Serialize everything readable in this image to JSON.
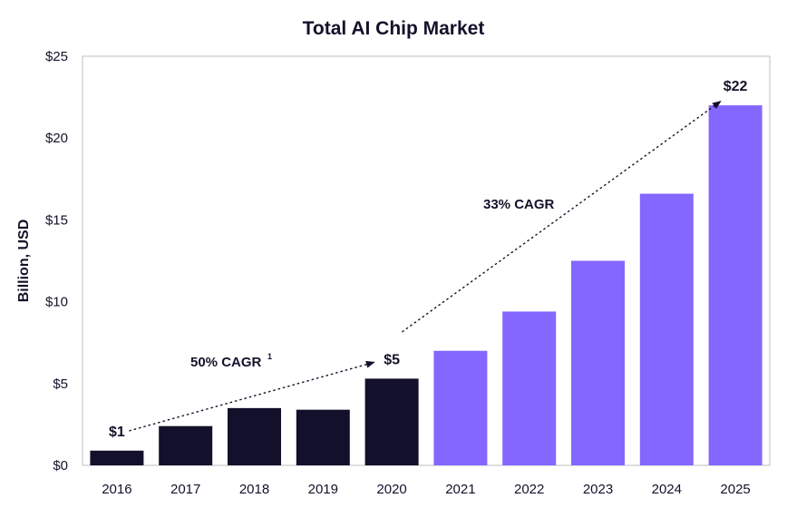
{
  "chart_data": {
    "type": "bar",
    "title": "Total AI Chip Market",
    "xlabel": "",
    "ylabel": "Billion, USD",
    "ylim": [
      0,
      25
    ],
    "yticks": [
      0,
      5,
      10,
      15,
      20,
      25
    ],
    "ytick_labels": [
      "$0",
      "$5",
      "$10",
      "$15",
      "$20",
      "$25"
    ],
    "grid": false,
    "categories": [
      "2016",
      "2017",
      "2018",
      "2019",
      "2020",
      "2021",
      "2022",
      "2023",
      "2024",
      "2025"
    ],
    "values": [
      0.9,
      2.4,
      3.5,
      3.4,
      5.3,
      7.0,
      9.4,
      12.5,
      16.6,
      22.0
    ],
    "colors": {
      "historical": "#12102a",
      "forecast": "#8467ff",
      "text": "#14122a",
      "frame": "#bfbfbf"
    },
    "bar_colors": [
      "historical",
      "historical",
      "historical",
      "historical",
      "historical",
      "forecast",
      "forecast",
      "forecast",
      "forecast",
      "forecast"
    ],
    "data_labels": [
      {
        "category": "2016",
        "text": "$1"
      },
      {
        "category": "2020",
        "text": "$5"
      },
      {
        "category": "2025",
        "text": "$22"
      }
    ],
    "annotations": [
      {
        "text": "50% CAGR",
        "superscript": "1",
        "from": {
          "x": "2016",
          "y": 1.9
        },
        "to": {
          "x": "2020",
          "y": 6.6
        }
      },
      {
        "text": "33% CAGR",
        "from": {
          "x": "2020",
          "y": 7.7
        },
        "to": {
          "x": "2025",
          "y": 22.9
        }
      }
    ]
  }
}
